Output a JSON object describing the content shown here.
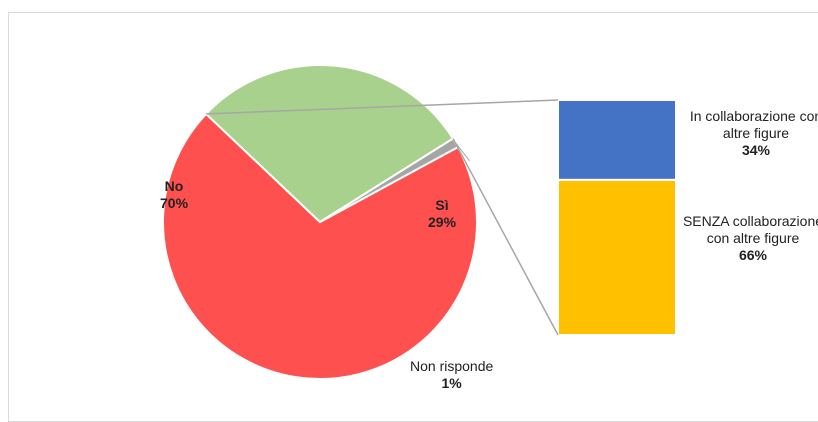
{
  "chart_data": {
    "type": "bar-of-pie",
    "pie": {
      "slices": [
        {
          "label": "No",
          "value": 70,
          "value_label": "70%",
          "color": "#ff5050"
        },
        {
          "label": "Sì",
          "value": 29,
          "value_label": "29%",
          "color": "#a9d18e"
        },
        {
          "label": "Non risponde",
          "value": 1,
          "value_label": "1%",
          "color": "#a5a5a5"
        }
      ]
    },
    "bar": {
      "source_slice": "Sì",
      "segments": [
        {
          "label": "In collaborazione con altre figure",
          "value": 34,
          "value_label": "34%",
          "color": "#4472c4"
        },
        {
          "label": "SENZA collaborazione con altre figure",
          "value": 66,
          "value_label": "66%",
          "color": "#ffc000"
        }
      ]
    }
  }
}
